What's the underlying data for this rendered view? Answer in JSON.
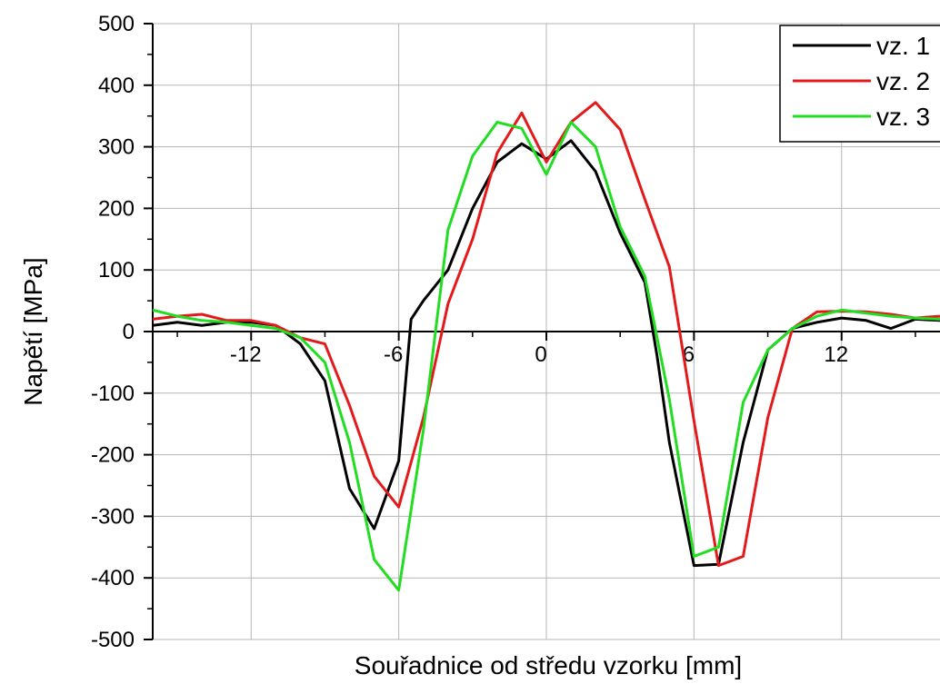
{
  "chart_data": {
    "type": "line",
    "xlabel": "Souřadnice od středu vzorku [mm]",
    "ylabel": "Napětí [MPa]",
    "xlim": [
      -16,
      16
    ],
    "ylim": [
      -500,
      500
    ],
    "x_ticks": [
      -12,
      -6,
      0,
      6,
      12
    ],
    "x_tick_labels": [
      "-12",
      "-6",
      "0",
      "6",
      "12"
    ],
    "y_ticks": [
      -500,
      -400,
      -300,
      -200,
      -100,
      0,
      100,
      200,
      300,
      400,
      500
    ],
    "y_tick_labels": [
      "-500",
      "-400",
      "-300",
      "-200",
      "-100",
      "0",
      "100",
      "200",
      "300",
      "400",
      "500"
    ],
    "grid": true,
    "legend_position": "top-right",
    "series": [
      {
        "name": "vz. 1",
        "color": "#000000",
        "x": [
          -16,
          -15,
          -14,
          -13,
          -12,
          -11,
          -10,
          -9,
          -8,
          -7,
          -6,
          -5.5,
          -5,
          -4,
          -3,
          -2,
          -1,
          0,
          1,
          2,
          3,
          4,
          4.5,
          5,
          6,
          7,
          8,
          9,
          10,
          11,
          12,
          13,
          14,
          15,
          16
        ],
        "y": [
          10,
          15,
          10,
          15,
          15,
          10,
          -20,
          -80,
          -255,
          -320,
          -210,
          20,
          50,
          100,
          200,
          275,
          305,
          280,
          310,
          260,
          160,
          80,
          -40,
          -180,
          -380,
          -378,
          -180,
          -30,
          5,
          15,
          22,
          18,
          5,
          20,
          18
        ]
      },
      {
        "name": "vz. 2",
        "color": "#e31a1c",
        "x": [
          -16,
          -15,
          -14,
          -13,
          -12,
          -11,
          -10,
          -9,
          -8,
          -7,
          -6,
          -5,
          -4,
          -3,
          -2,
          -1,
          0,
          1,
          2,
          3,
          4,
          5,
          6,
          7,
          8,
          9,
          10,
          11,
          12,
          13,
          14,
          15,
          16
        ],
        "y": [
          20,
          25,
          28,
          18,
          18,
          10,
          -10,
          -20,
          -120,
          -235,
          -285,
          -140,
          45,
          150,
          290,
          355,
          275,
          340,
          372,
          328,
          215,
          105,
          -145,
          -380,
          -365,
          -140,
          5,
          32,
          33,
          32,
          28,
          22,
          25
        ]
      },
      {
        "name": "vz. 3",
        "color": "#22dd22",
        "x": [
          -16,
          -15,
          -14,
          -13,
          -12,
          -11,
          -10,
          -9,
          -8,
          -7,
          -6,
          -5,
          -4,
          -3,
          -2,
          -1,
          0,
          1,
          2,
          3,
          4,
          5,
          6,
          7,
          8,
          9,
          10,
          11,
          12,
          13,
          14,
          15,
          16
        ],
        "y": [
          35,
          25,
          18,
          15,
          10,
          5,
          -10,
          -50,
          -180,
          -370,
          -420,
          -160,
          165,
          285,
          340,
          330,
          255,
          340,
          300,
          170,
          90,
          -110,
          -365,
          -350,
          -115,
          -30,
          5,
          25,
          35,
          30,
          25,
          22,
          20
        ]
      }
    ]
  }
}
